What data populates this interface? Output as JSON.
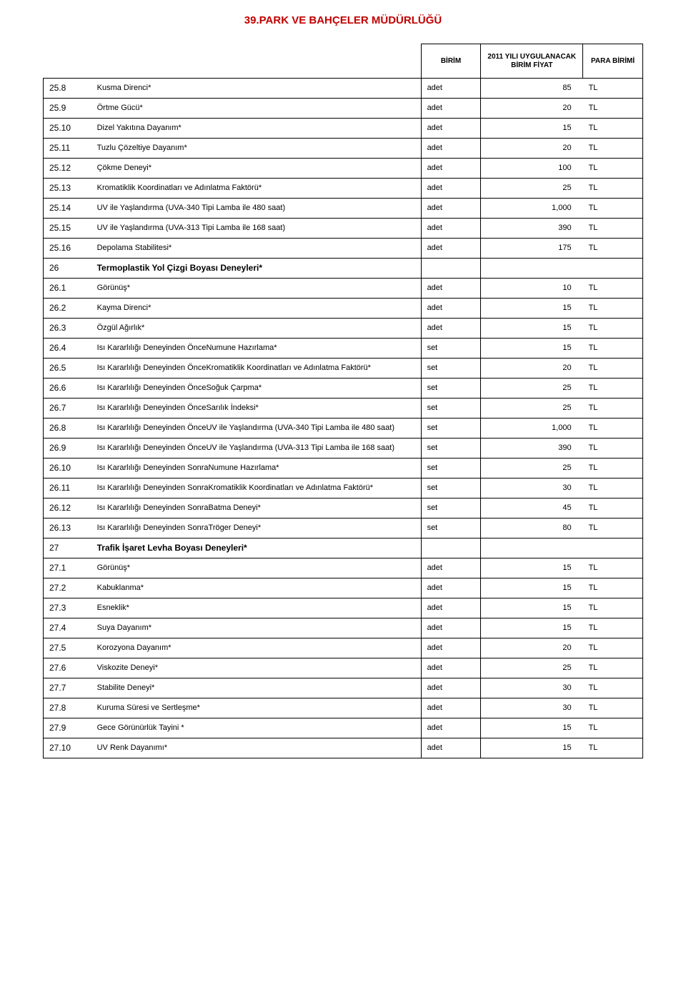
{
  "title": "39.PARK VE BAHÇELER MÜDÜRLÜĞÜ",
  "headers": {
    "unit": "BİRİM",
    "price": "2011 YILI UYGULANACAK BİRİM FİYAT",
    "currency": "PARA BİRİMİ"
  },
  "rows": [
    {
      "code": "25.8",
      "desc": "Kusma Direnci*",
      "unit": "adet",
      "price": "85",
      "curr": "TL"
    },
    {
      "code": "25.9",
      "desc": "Örtme Gücü*",
      "unit": "adet",
      "price": "20",
      "curr": "TL"
    },
    {
      "code": "25.10",
      "desc": "Dizel Yakıtına Dayanım*",
      "unit": "adet",
      "price": "15",
      "curr": "TL"
    },
    {
      "code": "25.11",
      "desc": "Tuzlu Çözeltiye Dayanım*",
      "unit": "adet",
      "price": "20",
      "curr": "TL"
    },
    {
      "code": "25.12",
      "desc": "Çökme Deneyi*",
      "unit": "adet",
      "price": "100",
      "curr": "TL"
    },
    {
      "code": "25.13",
      "desc": "Kromatiklik Koordinatları ve Adınlatma Faktörü*",
      "unit": "adet",
      "price": "25",
      "curr": "TL"
    },
    {
      "code": "25.14",
      "desc": "UV ile Yaşlandırma (UVA-340 Tipi Lamba  ile 480 saat)",
      "unit": "adet",
      "price": "1,000",
      "curr": "TL"
    },
    {
      "code": "25.15",
      "desc": "UV ile Yaşlandırma (UVA-313 Tipi Lamba  ile 168 saat)",
      "unit": "adet",
      "price": "390",
      "curr": "TL"
    },
    {
      "code": "25.16",
      "desc": "Depolama Stabilitesi*",
      "unit": "adet",
      "price": "175",
      "curr": "TL"
    },
    {
      "code": "26",
      "desc": "Termoplastik Yol Çizgi Boyası Deneyleri*",
      "section": true
    },
    {
      "code": "26.1",
      "desc": "Görünüş*",
      "unit": "adet",
      "price": "10",
      "curr": "TL"
    },
    {
      "code": "26.2",
      "desc": "Kayma Direnci*",
      "unit": "adet",
      "price": "15",
      "curr": "TL"
    },
    {
      "code": "26.3",
      "desc": "Özgül Ağırlık*",
      "unit": "adet",
      "price": "15",
      "curr": "TL"
    },
    {
      "code": "26.4",
      "desc": "Isı Kararlılığı Deneyinden ÖnceNumune Hazırlama*",
      "unit": "set",
      "price": "15",
      "curr": "TL"
    },
    {
      "code": "26.5",
      "desc": "Isı Kararlılığı Deneyinden ÖnceKromatiklik Koordinatları ve Adınlatma Faktörü*",
      "unit": "set",
      "price": "20",
      "curr": "TL"
    },
    {
      "code": "26.6",
      "desc": "Isı Kararlılığı Deneyinden ÖnceSoğuk Çarpma*",
      "unit": "set",
      "price": "25",
      "curr": "TL"
    },
    {
      "code": "26.7",
      "desc": "Isı Kararlılığı Deneyinden ÖnceSarılık İndeksi*",
      "unit": "set",
      "price": "25",
      "curr": "TL"
    },
    {
      "code": "26.8",
      "desc": "Isı Kararlılığı Deneyinden ÖnceUV ile Yaşlandırma (UVA-340 Tipi Lamba  ile 480 saat)",
      "unit": "set",
      "price": "1,000",
      "curr": "TL"
    },
    {
      "code": "26.9",
      "desc": "Isı Kararlılığı Deneyinden ÖnceUV ile Yaşlandırma (UVA-313 Tipi Lamba  ile 168 saat)",
      "unit": "set",
      "price": "390",
      "curr": "TL"
    },
    {
      "code": "26.10",
      "desc": "Isı Kararlılığı Deneyinden SonraNumune Hazırlama*",
      "unit": "set",
      "price": "25",
      "curr": "TL"
    },
    {
      "code": "26.11",
      "desc": "Isı Kararlılığı Deneyinden SonraKromatiklik Koordinatları ve Adınlatma Faktörü*",
      "unit": "set",
      "price": "30",
      "curr": "TL"
    },
    {
      "code": "26.12",
      "desc": "Isı Kararlılığı Deneyinden SonraBatma Deneyi*",
      "unit": "set",
      "price": "45",
      "curr": "TL"
    },
    {
      "code": "26.13",
      "desc": "Isı Kararlılığı Deneyinden SonraTröger Deneyi*",
      "unit": "set",
      "price": "80",
      "curr": "TL"
    },
    {
      "code": "27",
      "desc": "Trafik İşaret Levha Boyası Deneyleri*",
      "section": true
    },
    {
      "code": "27.1",
      "desc": "Görünüş*",
      "unit": "adet",
      "price": "15",
      "curr": "TL"
    },
    {
      "code": "27.2",
      "desc": "Kabuklanma*",
      "unit": "adet",
      "price": "15",
      "curr": "TL"
    },
    {
      "code": "27.3",
      "desc": "Esneklik*",
      "unit": "adet",
      "price": "15",
      "curr": "TL"
    },
    {
      "code": "27.4",
      "desc": "Suya Dayanım*",
      "unit": "adet",
      "price": "15",
      "curr": "TL"
    },
    {
      "code": "27.5",
      "desc": "Korozyona Dayanım*",
      "unit": "adet",
      "price": "20",
      "curr": "TL"
    },
    {
      "code": "27.6",
      "desc": "Viskozite Deneyi*",
      "unit": "adet",
      "price": "25",
      "curr": "TL"
    },
    {
      "code": "27.7",
      "desc": "Stabilite Deneyi*",
      "unit": "adet",
      "price": "30",
      "curr": "TL"
    },
    {
      "code": "27.8",
      "desc": "Kuruma Süresi ve Sertleşme*",
      "unit": "adet",
      "price": "30",
      "curr": "TL"
    },
    {
      "code": "27.9",
      "desc": "Gece Görünürlük Tayini *",
      "unit": "adet",
      "price": "15",
      "curr": "TL"
    },
    {
      "code": "27.10",
      "desc": "UV Renk Dayanımı*",
      "unit": "adet",
      "price": "15",
      "curr": "TL"
    }
  ]
}
